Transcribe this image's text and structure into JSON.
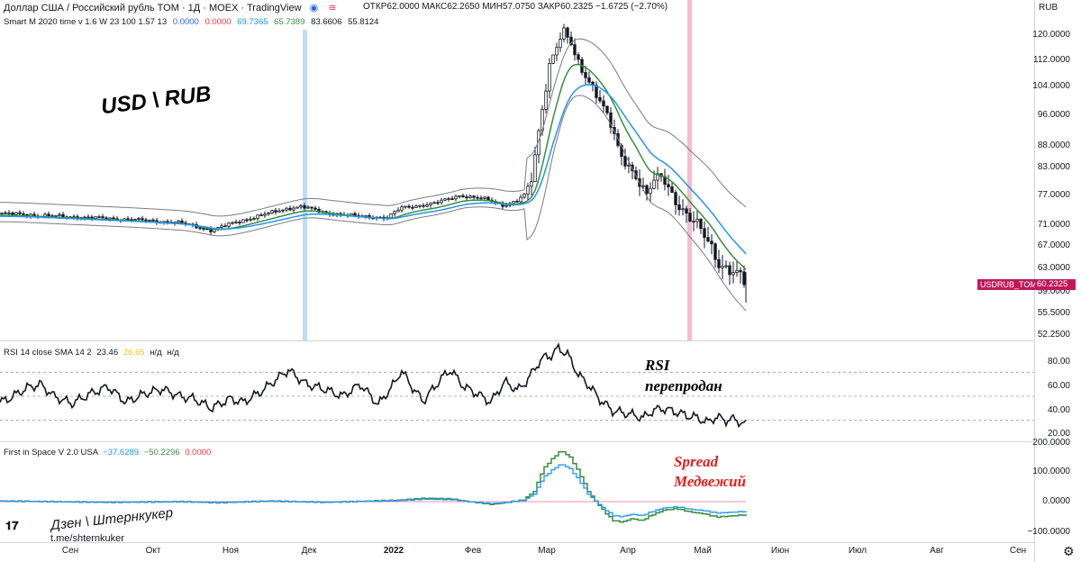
{
  "header": {
    "title": "Доллар США / Российский рубль TOM · 1Д · MOEX · TradingView",
    "ohlc": [
      {
        "label": "ОТКР",
        "value": "62.0000"
      },
      {
        "label": "МАКС",
        "value": "62.2650"
      },
      {
        "label": "МИН",
        "value": "57.0750"
      },
      {
        "label": "ЗАКР",
        "value": "60.2325"
      }
    ],
    "change": "−1.6725 (−2.70%)",
    "currency": "RUB"
  },
  "indicators": {
    "smart": {
      "name": "Smart M 2020 time v 1.6 W 23 100 1.57 13",
      "values": [
        "0.0000",
        "0.0000",
        "69.7365",
        "65.7389",
        "83.6606",
        "55.8124"
      ],
      "colors": [
        "#2962ff",
        "#f23645",
        "#2196f3",
        "#388e3c",
        "#131722",
        "#131722"
      ]
    },
    "rsi": {
      "name": "RSI 14 close SMA 14 2",
      "values": [
        "23.46",
        "26.65",
        "н/д",
        "н/д"
      ],
      "colors": [
        "#131722",
        "#f5c518",
        "#131722",
        "#131722"
      ]
    },
    "space": {
      "name": "First in Space V 2.0 USA",
      "values": [
        "−37.6289",
        "−50.2296",
        "0.0000"
      ],
      "colors": [
        "#2196f3",
        "#388e3c",
        "#f23645"
      ]
    }
  },
  "price_axis": [
    "120.0000",
    "112.0000",
    "104.0000",
    "96.0000",
    "88.0000",
    "83.0000",
    "77.0000",
    "71.0000",
    "67.0000",
    "63.0000",
    "59.0000",
    "55.5000",
    "52.2500"
  ],
  "last_price": {
    "symbol": "USDRUB_TOM",
    "value": "60.2325"
  },
  "rsi_axis": [
    "80.00",
    "60.00",
    "40.00",
    "20.00"
  ],
  "space_axis": [
    "200.0000",
    "100.0000",
    "0.0000",
    "−100.0000"
  ],
  "time_axis": [
    "Сен",
    "Окт",
    "Ноя",
    "Дек",
    "2022",
    "Фев",
    "Мар",
    "Апр",
    "Май",
    "Июн",
    "Июл",
    "Авг",
    "Сен"
  ],
  "annotations": {
    "main": "USD \\ RUB",
    "rsi_line1": "RSI",
    "rsi_line2": "перепродан",
    "spread_line1": "Spread",
    "spread_line2": "Медвежий",
    "author": "Дзен \\ Штернкукер",
    "link": "t.me/shternkuker"
  },
  "colors": {
    "up_candle": "#131722",
    "down_candle": "#131722",
    "ema_fast": "#2196f3",
    "ema_slow": "#388e3c",
    "band": "#787b86",
    "spread_text": "#e0201b",
    "price_tag": "#c2185b",
    "highlight_blue": "#bbdefb",
    "highlight_red": "#f8bbd0"
  },
  "chart_data": [
    {
      "type": "candlestick",
      "title": "USD \\ RUB",
      "series": [
        {
          "name": "USDRUB_TOM",
          "values": [
            73.4,
            73.0,
            72.6,
            72.2,
            71.5,
            72.0,
            73.0,
            74.8,
            73.5,
            72.8,
            71.9,
            71.0,
            72.5,
            74.0,
            74.2,
            74.3,
            74.8,
            78.0,
            83.0,
            100.0,
            112.0,
            120.0,
            115.0,
            110.0,
            103.0,
            96.0,
            88.0,
            84.0,
            80.0,
            77.0,
            80.0,
            79.0,
            76.0,
            73.0,
            71.0,
            67.0,
            64.0,
            62.0,
            60.23
          ]
        }
      ],
      "ylim": [
        52.25,
        120
      ]
    },
    {
      "type": "line",
      "title": "RSI 14 close SMA 14 2",
      "series": [
        {
          "name": "RSI",
          "values": [
            50,
            60,
            45,
            55,
            62,
            48,
            40,
            55,
            66,
            52,
            68,
            55,
            48,
            63,
            55,
            73,
            60,
            55,
            70,
            45,
            58,
            52,
            75,
            88,
            70,
            52,
            35,
            32,
            30,
            38,
            33,
            28,
            30,
            26,
            23.46
          ]
        }
      ],
      "ylim": [
        15,
        90
      ]
    },
    {
      "type": "line",
      "title": "First in Space V 2.0 USA",
      "series": [
        {
          "name": "blue",
          "values": [
            -2,
            -1,
            0,
            1,
            2,
            0,
            -2,
            1,
            3,
            4,
            2,
            0,
            -3,
            5,
            8,
            4,
            2,
            -8,
            10,
            40,
            100,
            125,
            75,
            25,
            -30,
            -50,
            -35,
            -5,
            5,
            -20,
            -30,
            -37.63
          ]
        },
        {
          "name": "green",
          "values": [
            -3,
            -2,
            0,
            2,
            3,
            0,
            -4,
            2,
            5,
            6,
            3,
            0,
            -5,
            8,
            12,
            6,
            3,
            -12,
            15,
            60,
            150,
            175,
            110,
            35,
            -40,
            -65,
            -55,
            -15,
            -5,
            -30,
            -45,
            -50.23
          ]
        }
      ],
      "ylim": [
        -110,
        200
      ]
    }
  ]
}
